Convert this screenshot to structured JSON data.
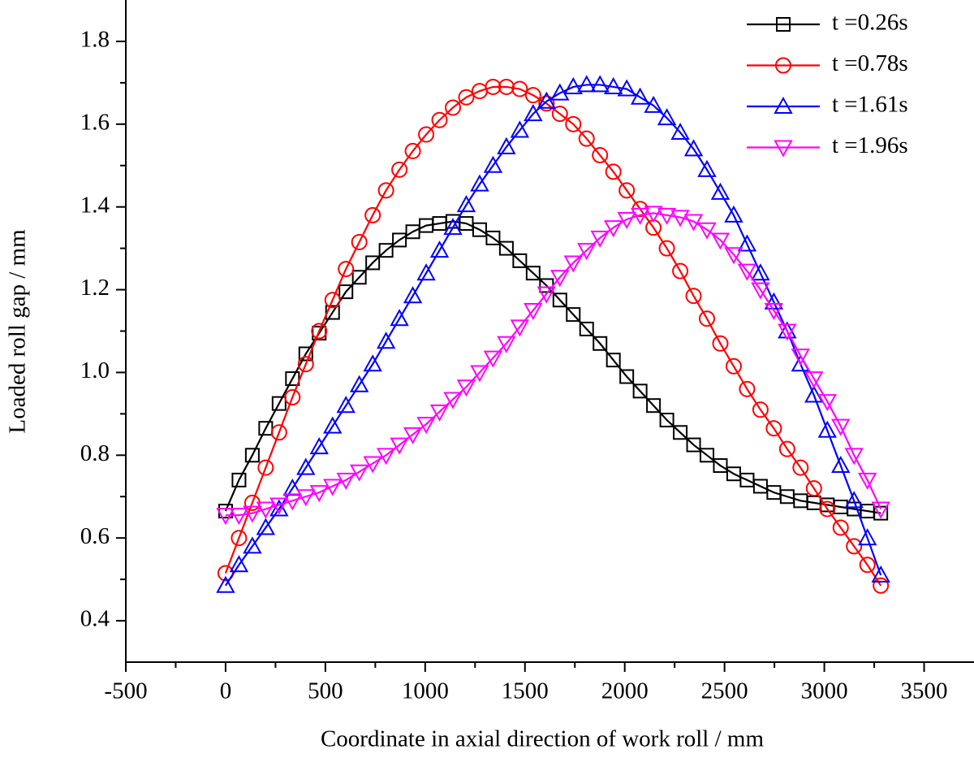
{
  "chart_data": {
    "type": "line",
    "xlabel": "Coordinate in axial direction of work roll / mm",
    "ylabel": "Loaded roll gap / mm",
    "xlim": [
      -500,
      3750
    ],
    "ylim": [
      0.3,
      1.9
    ],
    "xticks": [
      -500,
      0,
      500,
      1000,
      1500,
      2000,
      2500,
      3000,
      3500
    ],
    "yticks": [
      0.4,
      0.6,
      0.8,
      {
        "value": 1,
        "label": "1.0"
      },
      1.2,
      1.4,
      1.6,
      1.8
    ],
    "legend": "upper right",
    "x": [
      0,
      67,
      134,
      201,
      268,
      335,
      402,
      469,
      536,
      603,
      670,
      737,
      804,
      871,
      938,
      1005,
      1072,
      1139,
      1206,
      1273,
      1340,
      1407,
      1474,
      1541,
      1608,
      1675,
      1742,
      1809,
      1876,
      1943,
      2010,
      2077,
      2144,
      2211,
      2278,
      2345,
      2412,
      2479,
      2546,
      2613,
      2680,
      2747,
      2814,
      2881,
      2948,
      3015,
      3082,
      3149,
      3216,
      3283
    ],
    "series": [
      {
        "name": "t =0.26s",
        "color": "#000000",
        "marker": "square",
        "values": [
          0.665,
          0.74,
          0.8,
          0.865,
          0.925,
          0.985,
          1.045,
          1.095,
          1.145,
          1.195,
          1.23,
          1.265,
          1.295,
          1.32,
          1.34,
          1.355,
          1.36,
          1.365,
          1.36,
          1.345,
          1.325,
          1.3,
          1.27,
          1.24,
          1.21,
          1.175,
          1.14,
          1.105,
          1.07,
          1.03,
          0.99,
          0.955,
          0.92,
          0.885,
          0.855,
          0.825,
          0.8,
          0.775,
          0.755,
          0.74,
          0.725,
          0.71,
          0.7,
          0.69,
          0.685,
          0.68,
          0.675,
          0.67,
          0.665,
          0.66
        ]
      },
      {
        "name": "t =0.78s",
        "color": "#ff0000",
        "marker": "circle",
        "values": [
          0.515,
          0.6,
          0.685,
          0.77,
          0.855,
          0.94,
          1.02,
          1.1,
          1.175,
          1.25,
          1.315,
          1.38,
          1.44,
          1.49,
          1.535,
          1.575,
          1.61,
          1.64,
          1.665,
          1.68,
          1.69,
          1.69,
          1.685,
          1.67,
          1.65,
          1.625,
          1.6,
          1.565,
          1.525,
          1.485,
          1.44,
          1.395,
          1.35,
          1.3,
          1.245,
          1.185,
          1.13,
          1.07,
          1.015,
          0.96,
          0.91,
          0.865,
          0.815,
          0.77,
          0.72,
          0.67,
          0.625,
          0.58,
          0.535,
          0.485
        ]
      },
      {
        "name": "t =1.61s",
        "color": "#0000ff",
        "marker": "triangle-up",
        "values": [
          0.485,
          0.535,
          0.58,
          0.625,
          0.67,
          0.72,
          0.77,
          0.82,
          0.87,
          0.92,
          0.97,
          1.02,
          1.075,
          1.13,
          1.185,
          1.24,
          1.295,
          1.35,
          1.405,
          1.455,
          1.5,
          1.545,
          1.585,
          1.625,
          1.655,
          1.675,
          1.69,
          1.695,
          1.695,
          1.69,
          1.685,
          1.665,
          1.645,
          1.615,
          1.58,
          1.54,
          1.49,
          1.435,
          1.38,
          1.31,
          1.24,
          1.17,
          1.1,
          1.02,
          0.945,
          0.86,
          0.775,
          0.69,
          0.6,
          0.51
        ]
      },
      {
        "name": "t =1.96s",
        "color": "#ff00ff",
        "marker": "triangle-down",
        "values": [
          0.655,
          0.655,
          0.66,
          0.67,
          0.68,
          0.69,
          0.7,
          0.71,
          0.725,
          0.74,
          0.76,
          0.78,
          0.8,
          0.825,
          0.85,
          0.875,
          0.905,
          0.935,
          0.965,
          1.0,
          1.035,
          1.07,
          1.11,
          1.15,
          1.19,
          1.23,
          1.265,
          1.295,
          1.325,
          1.35,
          1.37,
          1.38,
          1.385,
          1.38,
          1.375,
          1.365,
          1.345,
          1.32,
          1.285,
          1.245,
          1.2,
          1.15,
          1.1,
          1.04,
          0.985,
          0.93,
          0.87,
          0.8,
          0.74,
          0.67
        ]
      }
    ]
  }
}
